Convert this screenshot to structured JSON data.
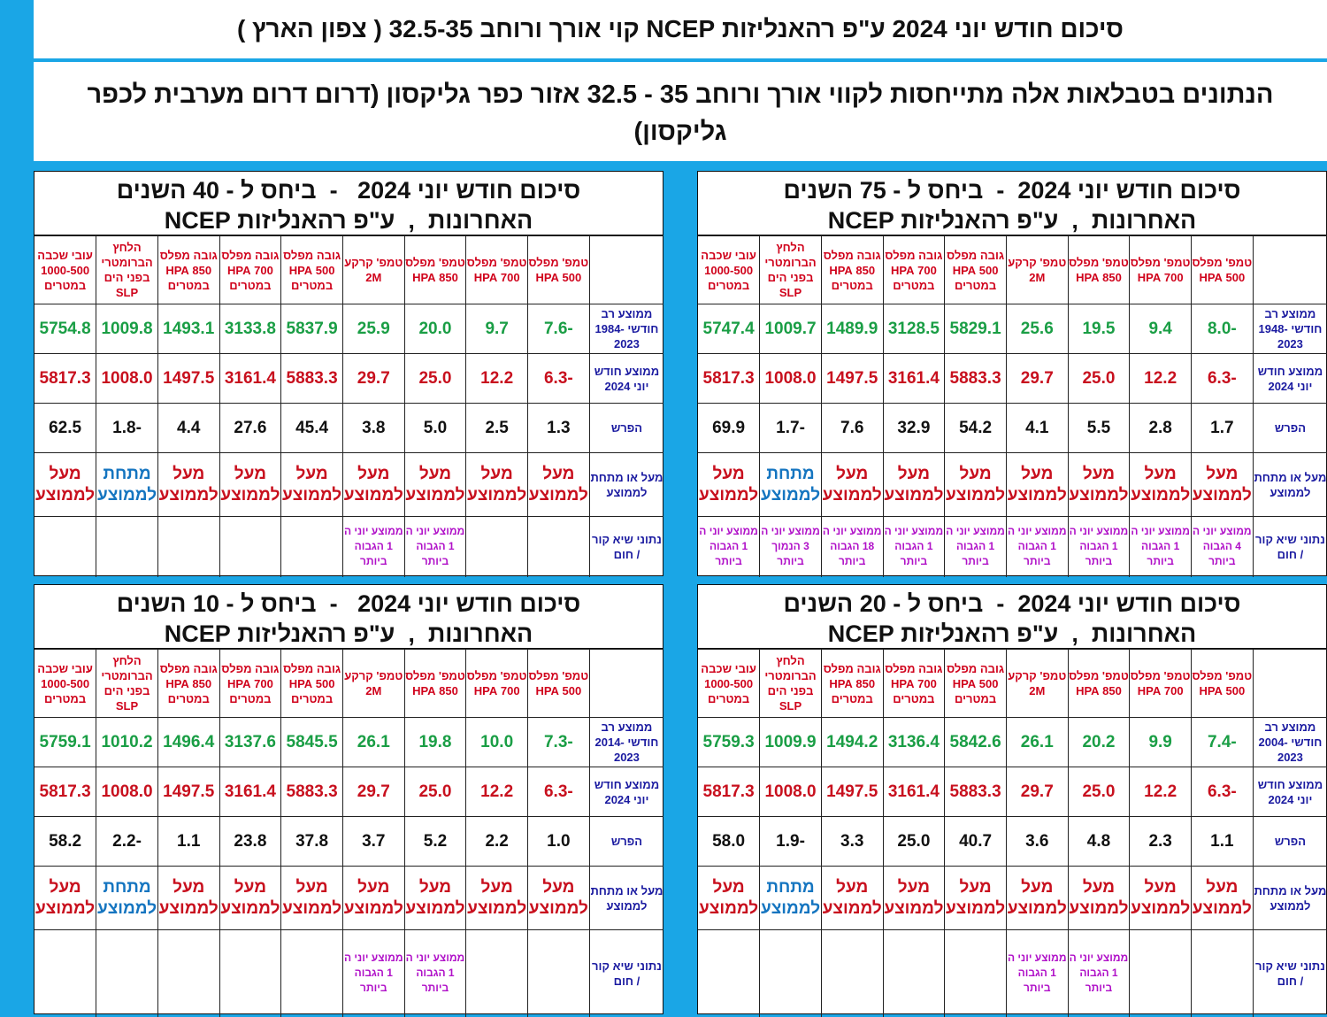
{
  "title": "סיכום חודש יוני 2024 ע\"פ רהאנליזות NCEP קוי אורך ורוחב 32.5-35 ( צפון הארץ )",
  "subtitle": {
    "line1": "הנתונים בטבלאות אלה מתייחסות לקווי אורך ורוחב 35 - 32.5       אזור כפר  גליקסון  (דרום דרום מערבית לכפר",
    "line2": "גליקסון)"
  },
  "column_headers": [
    "טמפ' מפלס 500 HPA",
    "טמפ' מפלס 700 HPA",
    "טמפ' מפלס 850 HPA",
    "טמפ' קרקע 2M",
    "גובה מפלס 500 HPA במטרים",
    "גובה מפלס 700 HPA במטרים",
    "גובה מפלס 850 HPA במטרים",
    "הלחץ הברומטרי בפני הים SLP",
    "עובי שכבה 1000-500 במטרים"
  ],
  "row_labels": {
    "current": "ממוצע חודש יוני 2024",
    "diff": "הפרש",
    "above_below": "מעל או מתחת לממוצע",
    "record": "נתוני שיא קור / חום"
  },
  "above_text": "מעל לממוצע",
  "below_text": "מתחת לממוצע",
  "panels": {
    "p75": {
      "header_line1": "סיכום חודש יוני 2024  -  ביחס ל - 75 השנים",
      "header_line2": "האחרונות  ,  ע\"פ רהאנליזות NCEP",
      "avg_label": "ממוצע רב חודשי 1948-2023",
      "avg": [
        "-8.0",
        "9.4",
        "19.5",
        "25.6",
        "5829.1",
        "3128.5",
        "1489.9",
        "1009.7",
        "5747.4"
      ],
      "current": [
        "-6.3",
        "12.2",
        "25.0",
        "29.7",
        "5883.3",
        "3161.4",
        "1497.5",
        "1008.0",
        "5817.3"
      ],
      "diff": [
        "1.7",
        "2.8",
        "5.5",
        "4.1",
        "54.2",
        "32.9",
        "7.6",
        "-1.7",
        "69.9"
      ],
      "status": [
        "above",
        "above",
        "above",
        "above",
        "above",
        "above",
        "above",
        "below",
        "above"
      ],
      "records": [
        "ממוצע יוני ה 4 הגבוה ביותר",
        "ממוצע יוני ה 1 הגבוה ביותר",
        "ממוצע יוני ה 1 הגבוה ביותר",
        "ממוצע יוני ה 1 הגבוה ביותר",
        "ממוצע יוני ה 1 הגבוה ביותר",
        "ממוצע יוני ה 1 הגבוה ביותר",
        "ממוצע יוני ה 18 הגבוה ביותר",
        "ממוצע יוני ה 3 הנמוך ביותר",
        "ממוצע יוני ה 1 הגבוה ביותר"
      ]
    },
    "p40": {
      "header_line1": "סיכום חודש יוני 2024   -  ביחס ל - 40 השנים",
      "header_line2": "האחרונות  ,  ע\"פ רהאנליזות NCEP",
      "avg_label": "ממוצע רב חודשי 1984-2023",
      "avg": [
        "-7.6",
        "9.7",
        "20.0",
        "25.9",
        "5837.9",
        "3133.8",
        "1493.1",
        "1009.8",
        "5754.8"
      ],
      "current": [
        "-6.3",
        "12.2",
        "25.0",
        "29.7",
        "5883.3",
        "3161.4",
        "1497.5",
        "1008.0",
        "5817.3"
      ],
      "diff": [
        "1.3",
        "2.5",
        "5.0",
        "3.8",
        "45.4",
        "27.6",
        "4.4",
        "-1.8",
        "62.5"
      ],
      "status": [
        "above",
        "above",
        "above",
        "above",
        "above",
        "above",
        "above",
        "below",
        "above"
      ],
      "records": [
        "",
        "",
        "ממוצע יוני ה 1 הגבוה ביותר",
        "ממוצע יוני ה 1 הגבוה ביותר",
        "",
        "",
        "",
        "",
        ""
      ]
    },
    "p20": {
      "header_line1": "סיכום חודש יוני 2024  -  ביחס ל - 20 השנים",
      "header_line2": "האחרונות  ,  ע\"פ רהאנליזות NCEP",
      "avg_label": "ממוצע רב חודשי 2004-2023",
      "avg": [
        "-7.4",
        "9.9",
        "20.2",
        "26.1",
        "5842.6",
        "3136.4",
        "1494.2",
        "1009.9",
        "5759.3"
      ],
      "current": [
        "-6.3",
        "12.2",
        "25.0",
        "29.7",
        "5883.3",
        "3161.4",
        "1497.5",
        "1008.0",
        "5817.3"
      ],
      "diff": [
        "1.1",
        "2.3",
        "4.8",
        "3.6",
        "40.7",
        "25.0",
        "3.3",
        "-1.9",
        "58.0"
      ],
      "status": [
        "above",
        "above",
        "above",
        "above",
        "above",
        "above",
        "above",
        "below",
        "above"
      ],
      "records": [
        "",
        "",
        "ממוצע יוני ה 1 הגבוה ביותר",
        "ממוצע יוני ה 1 הגבוה ביותר",
        "",
        "",
        "",
        "",
        ""
      ]
    },
    "p10": {
      "header_line1": "סיכום חודש יוני 2024   -  ביחס ל - 10 השנים",
      "header_line2": "האחרונות  ,  ע\"פ רהאנליזות NCEP",
      "avg_label": "ממוצע רב חודשי 2014-2023",
      "avg": [
        "-7.3",
        "10.0",
        "19.8",
        "26.1",
        "5845.5",
        "3137.6",
        "1496.4",
        "1010.2",
        "5759.1"
      ],
      "current": [
        "-6.3",
        "12.2",
        "25.0",
        "29.7",
        "5883.3",
        "3161.4",
        "1497.5",
        "1008.0",
        "5817.3"
      ],
      "diff": [
        "1.0",
        "2.2",
        "5.2",
        "3.7",
        "37.8",
        "23.8",
        "1.1",
        "-2.2",
        "58.2"
      ],
      "status": [
        "above",
        "above",
        "above",
        "above",
        "above",
        "above",
        "above",
        "below",
        "above"
      ],
      "records": [
        "",
        "",
        "ממוצע יוני ה 1 הגבוה ביותר",
        "ממוצע יוני ה 1 הגבוה ביותר",
        "",
        "",
        "",
        "",
        ""
      ]
    }
  },
  "colors": {
    "background": "#1aa6e6",
    "avg_green": "#1a9e45",
    "current_red": "#c8101e",
    "below_blue": "#1575c0",
    "record_purple": "#b010c8",
    "label_navy": "#1a1aa0"
  }
}
